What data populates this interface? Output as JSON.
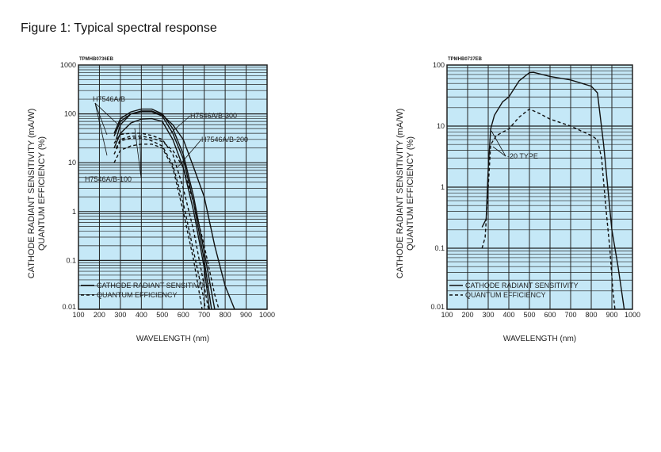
{
  "figure_title": "Figure 1: Typical spectral response",
  "chart_data": [
    {
      "type": "line",
      "code": "TPMHB0736EB",
      "xlabel": "WAVELENGTH (nm)",
      "ylabel": [
        "CATHODE RADIANT SENSITIVITY (mA/W)",
        "QUANTUM EFFICIENCY (%)"
      ],
      "xlim": [
        100,
        1000
      ],
      "ylim": [
        0.01,
        1000
      ],
      "yscale": "log",
      "xticks": [
        "100",
        "200",
        "300",
        "400",
        "500",
        "600",
        "700",
        "800",
        "900",
        "1000"
      ],
      "yticks": [
        "0.01",
        "0.1",
        "1",
        "10",
        "100",
        "1000"
      ],
      "legend": [
        "CATHODE RADIANT SENSITIVITY",
        "QUANTUM EFFICIENCY"
      ],
      "annotations": [
        "H7546A/B",
        "H7546A/B-300",
        "H7546A/B-200",
        "H7546A/B-100"
      ],
      "series": [
        {
          "name": "H7546A/B-300 sensitivity",
          "style": "solid",
          "points": [
            [
              280,
              30
            ],
            [
              300,
              60
            ],
            [
              350,
              100
            ],
            [
              400,
              115
            ],
            [
              450,
              115
            ],
            [
              500,
              95
            ],
            [
              550,
              60
            ],
            [
              600,
              30
            ],
            [
              650,
              8
            ],
            [
              700,
              2
            ],
            [
              750,
              0.2
            ],
            [
              800,
              0.03
            ],
            [
              845,
              0.01
            ]
          ]
        },
        {
          "name": "H7546A/B sensitivity",
          "style": "solid",
          "points": [
            [
              270,
              40
            ],
            [
              300,
              80
            ],
            [
              350,
              110
            ],
            [
              400,
              125
            ],
            [
              450,
              125
            ],
            [
              500,
              100
            ],
            [
              550,
              50
            ],
            [
              600,
              15
            ],
            [
              650,
              2
            ],
            [
              700,
              0.15
            ],
            [
              750,
              0.01
            ]
          ]
        },
        {
          "name": "H7546A/B-200 sensitivity",
          "style": "solid",
          "points": [
            [
              270,
              35
            ],
            [
              300,
              70
            ],
            [
              350,
              100
            ],
            [
              400,
              110
            ],
            [
              450,
              110
            ],
            [
              500,
              90
            ],
            [
              550,
              40
            ],
            [
              600,
              12
            ],
            [
              650,
              1.5
            ],
            [
              700,
              0.1
            ],
            [
              735,
              0.01
            ]
          ]
        },
        {
          "name": "H7546A/B-100 sensitivity",
          "style": "solid",
          "points": [
            [
              270,
              20
            ],
            [
              300,
              40
            ],
            [
              350,
              65
            ],
            [
              400,
              78
            ],
            [
              450,
              80
            ],
            [
              500,
              70
            ],
            [
              550,
              30
            ],
            [
              600,
              8
            ],
            [
              650,
              1
            ],
            [
              700,
              0.07
            ],
            [
              725,
              0.01
            ]
          ]
        },
        {
          "name": "H7546A/B QE",
          "style": "dashed",
          "points": [
            [
              270,
              25
            ],
            [
              300,
              38
            ],
            [
              350,
              40
            ],
            [
              400,
              40
            ],
            [
              450,
              36
            ],
            [
              500,
              30
            ],
            [
              550,
              15
            ],
            [
              600,
              3
            ],
            [
              650,
              0.4
            ],
            [
              700,
              0.03
            ],
            [
              720,
              0.01
            ]
          ]
        },
        {
          "name": "H7546A/B-300 QE",
          "style": "dashed",
          "points": [
            [
              280,
              20
            ],
            [
              300,
              30
            ],
            [
              350,
              35
            ],
            [
              400,
              35
            ],
            [
              450,
              32
            ],
            [
              500,
              27
            ],
            [
              550,
              18
            ],
            [
              600,
              8
            ],
            [
              650,
              1.5
            ],
            [
              700,
              0.2
            ],
            [
              750,
              0.02
            ],
            [
              770,
              0.01
            ]
          ]
        },
        {
          "name": "H7546A/B-200 QE",
          "style": "dashed",
          "points": [
            [
              270,
              15
            ],
            [
              300,
              28
            ],
            [
              350,
              32
            ],
            [
              400,
              32
            ],
            [
              450,
              28
            ],
            [
              500,
              22
            ],
            [
              550,
              9
            ],
            [
              600,
              1.5
            ],
            [
              650,
              0.15
            ],
            [
              700,
              0.015
            ],
            [
              705,
              0.01
            ]
          ]
        },
        {
          "name": "H7546A/B-100 QE",
          "style": "dashed",
          "points": [
            [
              270,
              10
            ],
            [
              300,
              18
            ],
            [
              350,
              22
            ],
            [
              400,
              24
            ],
            [
              450,
              24
            ],
            [
              500,
              20
            ],
            [
              550,
              8
            ],
            [
              600,
              1
            ],
            [
              650,
              0.1
            ],
            [
              690,
              0.01
            ]
          ]
        }
      ]
    },
    {
      "type": "line",
      "code": "TPMHB0737EB",
      "xlabel": "WAVELENGTH (nm)",
      "ylabel": [
        "CATHODE RADIANT SENSITIVITY (mA/W)",
        "QUANTUM EFFICIENCY (%)"
      ],
      "xlim": [
        100,
        1000
      ],
      "ylim": [
        0.01,
        100
      ],
      "yscale": "log",
      "xticks": [
        "100",
        "200",
        "300",
        "400",
        "500",
        "600",
        "700",
        "800",
        "900",
        "1000"
      ],
      "yticks": [
        "0.01",
        "0.1",
        "1",
        "10",
        "100"
      ],
      "legend": [
        "CATHODE RADIANT SENSITIVITY",
        "QUANTUM EFFICIENCY"
      ],
      "annotations": [
        "-20 TYPE"
      ],
      "series": [
        {
          "name": "-20 type sensitivity",
          "style": "solid",
          "points": [
            [
              270,
              0.22
            ],
            [
              290,
              0.3
            ],
            [
              300,
              2
            ],
            [
              312,
              9
            ],
            [
              330,
              15
            ],
            [
              370,
              25
            ],
            [
              400,
              30
            ],
            [
              450,
              55
            ],
            [
              500,
              75
            ],
            [
              520,
              76
            ],
            [
              600,
              65
            ],
            [
              700,
              57
            ],
            [
              800,
              45
            ],
            [
              830,
              35
            ],
            [
              860,
              5
            ],
            [
              880,
              1
            ],
            [
              900,
              0.2
            ],
            [
              930,
              0.05
            ],
            [
              960,
              0.01
            ]
          ]
        },
        {
          "name": "-20 type QE",
          "style": "dashed",
          "points": [
            [
              270,
              0.1
            ],
            [
              285,
              0.15
            ],
            [
              300,
              1
            ],
            [
              312,
              5
            ],
            [
              340,
              7
            ],
            [
              400,
              9
            ],
            [
              450,
              14
            ],
            [
              500,
              19
            ],
            [
              550,
              16
            ],
            [
              600,
              13
            ],
            [
              700,
              10
            ],
            [
              800,
              7
            ],
            [
              830,
              6
            ],
            [
              850,
              3
            ],
            [
              870,
              0.5
            ],
            [
              890,
              0.1
            ],
            [
              905,
              0.02
            ],
            [
              915,
              0.01
            ]
          ]
        }
      ]
    }
  ]
}
